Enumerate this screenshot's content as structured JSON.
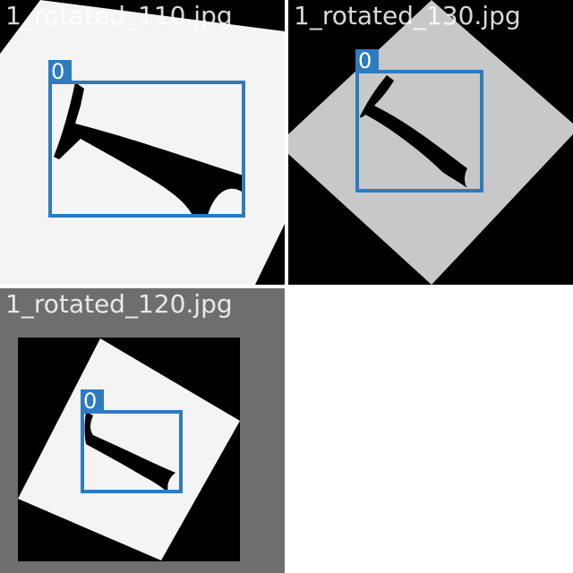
{
  "tiles": [
    {
      "filename": "1_rotated_110.jpg",
      "detections": [
        {
          "label": "0"
        }
      ]
    },
    {
      "filename": "1_rotated_130.jpg",
      "detections": [
        {
          "label": "0"
        }
      ]
    },
    {
      "filename": "1_rotated_120.jpg",
      "detections": [
        {
          "label": "0"
        }
      ]
    }
  ],
  "colors": {
    "box": "#2e7bbf",
    "caption": "#ffffff",
    "page_bg": "#ffffff",
    "tile1_bg": "#000000",
    "tile1_image": "#f4f4f4",
    "tile2_bg": "#000000",
    "tile2_image": "#c8c8c8",
    "tile3_bg": "#6e6e6e",
    "tile3_inner_bg": "#000000",
    "tile3_image": "#f4f4f4",
    "glyph": "#000000"
  }
}
